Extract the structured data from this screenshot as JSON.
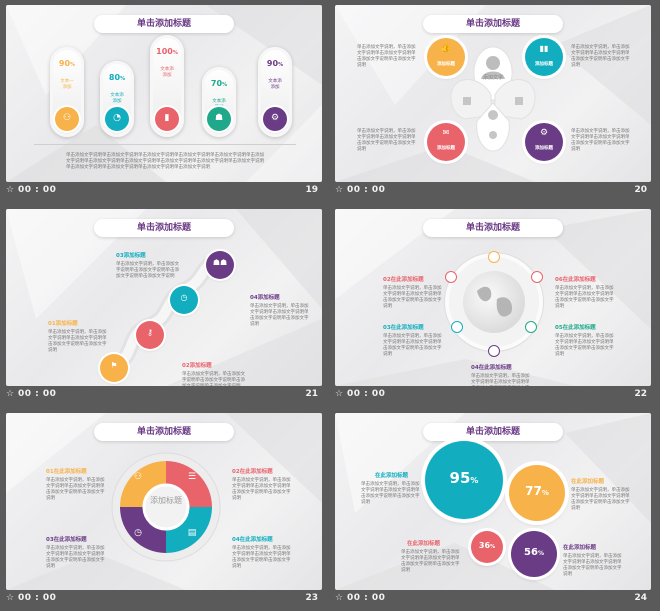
{
  "placeholder_title": "单击添加标题",
  "placeholder_add_title": "添加标题",
  "placeholder_body": "单击添加文字说明单击添加文字说明，单击添加文字说明单击添加文字说明，单击添加文字说明",
  "placeholder_small": "单击添加文字说明，单击添加文字说明单击添加文字说明单击添加文字说明单击添加文字说明",
  "footer_star": "☆",
  "footer_time": "00 : 00",
  "colors": {
    "yellow": "#f7b24a",
    "teal": "#12aebf",
    "red": "#e9636b",
    "green": "#1fa98a",
    "purple": "#6b3c86"
  },
  "slides": [
    {
      "number": "19",
      "bars": [
        {
          "pct": "90",
          "unit": "%",
          "label": "文本一\n添加",
          "color": "#f7b24a",
          "icon": "people-icon"
        },
        {
          "pct": "80",
          "unit": "%",
          "label": "文本添\n添加",
          "color": "#12aebf",
          "icon": "pie-chart-icon"
        },
        {
          "pct": "100",
          "unit": "%",
          "label": "文本添\n添加",
          "color": "#e9636b",
          "icon": "bar-chart-icon"
        },
        {
          "pct": "70",
          "unit": "%",
          "label": "文本添\n添加",
          "color": "#1fa98a",
          "icon": "team-icon"
        },
        {
          "pct": "90",
          "unit": "%",
          "label": "文本添\n添加",
          "color": "#6b3c86",
          "icon": "gear-icon"
        }
      ],
      "footer_text": "单击添加文字说明单击添加文字说明单击添加文字说明单击添加文字说明单击添加文字说明单击添加文字说明单击添加文字说明单击添加文字说明单击添加文字说明单击添加文字说明单击添加文字说明单击添加文字说明单击添加文字说明单击添加文字说明单击添加文字说明"
    },
    {
      "number": "20",
      "center": "添加文字",
      "items": [
        "添加标题",
        "添加标题",
        "添加标题",
        "添加标题"
      ]
    },
    {
      "number": "21",
      "items": [
        {
          "num": "01",
          "t": "添加标题"
        },
        {
          "num": "02",
          "t": "添加标题"
        },
        {
          "num": "03",
          "t": "添加标题"
        },
        {
          "num": "04",
          "t": "添加标题"
        }
      ]
    },
    {
      "number": "22",
      "items": [
        {
          "num": "02",
          "t": "在此添加标题"
        },
        {
          "num": "06",
          "t": "在此添加标题"
        },
        {
          "num": "03",
          "t": "在此添加标题"
        },
        {
          "num": "05",
          "t": "在此添加标题"
        },
        {
          "num": "04",
          "t": "在此添加标题"
        }
      ]
    },
    {
      "number": "23",
      "items": [
        {
          "num": "01",
          "t": "在此添加标题"
        },
        {
          "num": "02",
          "t": "在此添加标题"
        },
        {
          "num": "03",
          "t": "在此添加标题"
        },
        {
          "num": "04",
          "t": "在此添加标题"
        }
      ]
    },
    {
      "number": "24",
      "values": [
        {
          "v": "95",
          "u": "%",
          "color": "#12aebf"
        },
        {
          "v": "77",
          "u": "%",
          "color": "#f7b24a"
        },
        {
          "v": "36",
          "u": "%",
          "color": "#e9636b"
        },
        {
          "v": "56",
          "u": "%",
          "color": "#6b3c86"
        }
      ],
      "labels": [
        "在此添加标题",
        "在此添加标题",
        "在此添加标题",
        "在此添加标题"
      ]
    }
  ]
}
